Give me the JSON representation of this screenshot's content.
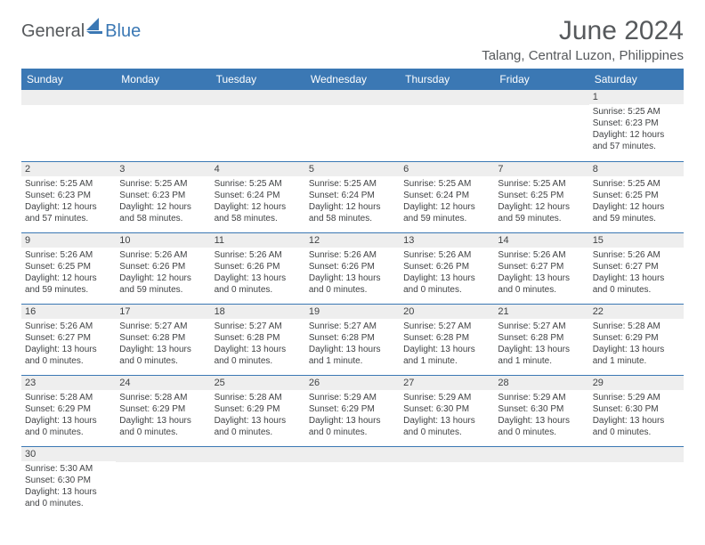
{
  "logo": {
    "text1": "General",
    "text2": "Blue"
  },
  "title": "June 2024",
  "location": "Talang, Central Luzon, Philippines",
  "colors": {
    "header_bg": "#3b78b4",
    "header_text": "#ffffff",
    "daynum_bg": "#eeeeee",
    "cell_border": "#3b78b4",
    "text": "#404244",
    "title_text": "#56595c"
  },
  "typography": {
    "title_fontsize": 30,
    "location_fontsize": 15,
    "dayheader_fontsize": 12,
    "daynum_fontsize": 11,
    "body_fontsize": 10
  },
  "day_headers": [
    "Sunday",
    "Monday",
    "Tuesday",
    "Wednesday",
    "Thursday",
    "Friday",
    "Saturday"
  ],
  "weeks": [
    [
      {
        "n": "",
        "sunrise": "",
        "sunset": "",
        "daylight": ""
      },
      {
        "n": "",
        "sunrise": "",
        "sunset": "",
        "daylight": ""
      },
      {
        "n": "",
        "sunrise": "",
        "sunset": "",
        "daylight": ""
      },
      {
        "n": "",
        "sunrise": "",
        "sunset": "",
        "daylight": ""
      },
      {
        "n": "",
        "sunrise": "",
        "sunset": "",
        "daylight": ""
      },
      {
        "n": "",
        "sunrise": "",
        "sunset": "",
        "daylight": ""
      },
      {
        "n": "1",
        "sunrise": "Sunrise: 5:25 AM",
        "sunset": "Sunset: 6:23 PM",
        "daylight": "Daylight: 12 hours and 57 minutes."
      }
    ],
    [
      {
        "n": "2",
        "sunrise": "Sunrise: 5:25 AM",
        "sunset": "Sunset: 6:23 PM",
        "daylight": "Daylight: 12 hours and 57 minutes."
      },
      {
        "n": "3",
        "sunrise": "Sunrise: 5:25 AM",
        "sunset": "Sunset: 6:23 PM",
        "daylight": "Daylight: 12 hours and 58 minutes."
      },
      {
        "n": "4",
        "sunrise": "Sunrise: 5:25 AM",
        "sunset": "Sunset: 6:24 PM",
        "daylight": "Daylight: 12 hours and 58 minutes."
      },
      {
        "n": "5",
        "sunrise": "Sunrise: 5:25 AM",
        "sunset": "Sunset: 6:24 PM",
        "daylight": "Daylight: 12 hours and 58 minutes."
      },
      {
        "n": "6",
        "sunrise": "Sunrise: 5:25 AM",
        "sunset": "Sunset: 6:24 PM",
        "daylight": "Daylight: 12 hours and 59 minutes."
      },
      {
        "n": "7",
        "sunrise": "Sunrise: 5:25 AM",
        "sunset": "Sunset: 6:25 PM",
        "daylight": "Daylight: 12 hours and 59 minutes."
      },
      {
        "n": "8",
        "sunrise": "Sunrise: 5:25 AM",
        "sunset": "Sunset: 6:25 PM",
        "daylight": "Daylight: 12 hours and 59 minutes."
      }
    ],
    [
      {
        "n": "9",
        "sunrise": "Sunrise: 5:26 AM",
        "sunset": "Sunset: 6:25 PM",
        "daylight": "Daylight: 12 hours and 59 minutes."
      },
      {
        "n": "10",
        "sunrise": "Sunrise: 5:26 AM",
        "sunset": "Sunset: 6:26 PM",
        "daylight": "Daylight: 12 hours and 59 minutes."
      },
      {
        "n": "11",
        "sunrise": "Sunrise: 5:26 AM",
        "sunset": "Sunset: 6:26 PM",
        "daylight": "Daylight: 13 hours and 0 minutes."
      },
      {
        "n": "12",
        "sunrise": "Sunrise: 5:26 AM",
        "sunset": "Sunset: 6:26 PM",
        "daylight": "Daylight: 13 hours and 0 minutes."
      },
      {
        "n": "13",
        "sunrise": "Sunrise: 5:26 AM",
        "sunset": "Sunset: 6:26 PM",
        "daylight": "Daylight: 13 hours and 0 minutes."
      },
      {
        "n": "14",
        "sunrise": "Sunrise: 5:26 AM",
        "sunset": "Sunset: 6:27 PM",
        "daylight": "Daylight: 13 hours and 0 minutes."
      },
      {
        "n": "15",
        "sunrise": "Sunrise: 5:26 AM",
        "sunset": "Sunset: 6:27 PM",
        "daylight": "Daylight: 13 hours and 0 minutes."
      }
    ],
    [
      {
        "n": "16",
        "sunrise": "Sunrise: 5:26 AM",
        "sunset": "Sunset: 6:27 PM",
        "daylight": "Daylight: 13 hours and 0 minutes."
      },
      {
        "n": "17",
        "sunrise": "Sunrise: 5:27 AM",
        "sunset": "Sunset: 6:28 PM",
        "daylight": "Daylight: 13 hours and 0 minutes."
      },
      {
        "n": "18",
        "sunrise": "Sunrise: 5:27 AM",
        "sunset": "Sunset: 6:28 PM",
        "daylight": "Daylight: 13 hours and 0 minutes."
      },
      {
        "n": "19",
        "sunrise": "Sunrise: 5:27 AM",
        "sunset": "Sunset: 6:28 PM",
        "daylight": "Daylight: 13 hours and 1 minute."
      },
      {
        "n": "20",
        "sunrise": "Sunrise: 5:27 AM",
        "sunset": "Sunset: 6:28 PM",
        "daylight": "Daylight: 13 hours and 1 minute."
      },
      {
        "n": "21",
        "sunrise": "Sunrise: 5:27 AM",
        "sunset": "Sunset: 6:28 PM",
        "daylight": "Daylight: 13 hours and 1 minute."
      },
      {
        "n": "22",
        "sunrise": "Sunrise: 5:28 AM",
        "sunset": "Sunset: 6:29 PM",
        "daylight": "Daylight: 13 hours and 1 minute."
      }
    ],
    [
      {
        "n": "23",
        "sunrise": "Sunrise: 5:28 AM",
        "sunset": "Sunset: 6:29 PM",
        "daylight": "Daylight: 13 hours and 0 minutes."
      },
      {
        "n": "24",
        "sunrise": "Sunrise: 5:28 AM",
        "sunset": "Sunset: 6:29 PM",
        "daylight": "Daylight: 13 hours and 0 minutes."
      },
      {
        "n": "25",
        "sunrise": "Sunrise: 5:28 AM",
        "sunset": "Sunset: 6:29 PM",
        "daylight": "Daylight: 13 hours and 0 minutes."
      },
      {
        "n": "26",
        "sunrise": "Sunrise: 5:29 AM",
        "sunset": "Sunset: 6:29 PM",
        "daylight": "Daylight: 13 hours and 0 minutes."
      },
      {
        "n": "27",
        "sunrise": "Sunrise: 5:29 AM",
        "sunset": "Sunset: 6:30 PM",
        "daylight": "Daylight: 13 hours and 0 minutes."
      },
      {
        "n": "28",
        "sunrise": "Sunrise: 5:29 AM",
        "sunset": "Sunset: 6:30 PM",
        "daylight": "Daylight: 13 hours and 0 minutes."
      },
      {
        "n": "29",
        "sunrise": "Sunrise: 5:29 AM",
        "sunset": "Sunset: 6:30 PM",
        "daylight": "Daylight: 13 hours and 0 minutes."
      }
    ],
    [
      {
        "n": "30",
        "sunrise": "Sunrise: 5:30 AM",
        "sunset": "Sunset: 6:30 PM",
        "daylight": "Daylight: 13 hours and 0 minutes."
      },
      {
        "n": "",
        "sunrise": "",
        "sunset": "",
        "daylight": ""
      },
      {
        "n": "",
        "sunrise": "",
        "sunset": "",
        "daylight": ""
      },
      {
        "n": "",
        "sunrise": "",
        "sunset": "",
        "daylight": ""
      },
      {
        "n": "",
        "sunrise": "",
        "sunset": "",
        "daylight": ""
      },
      {
        "n": "",
        "sunrise": "",
        "sunset": "",
        "daylight": ""
      },
      {
        "n": "",
        "sunrise": "",
        "sunset": "",
        "daylight": ""
      }
    ]
  ]
}
